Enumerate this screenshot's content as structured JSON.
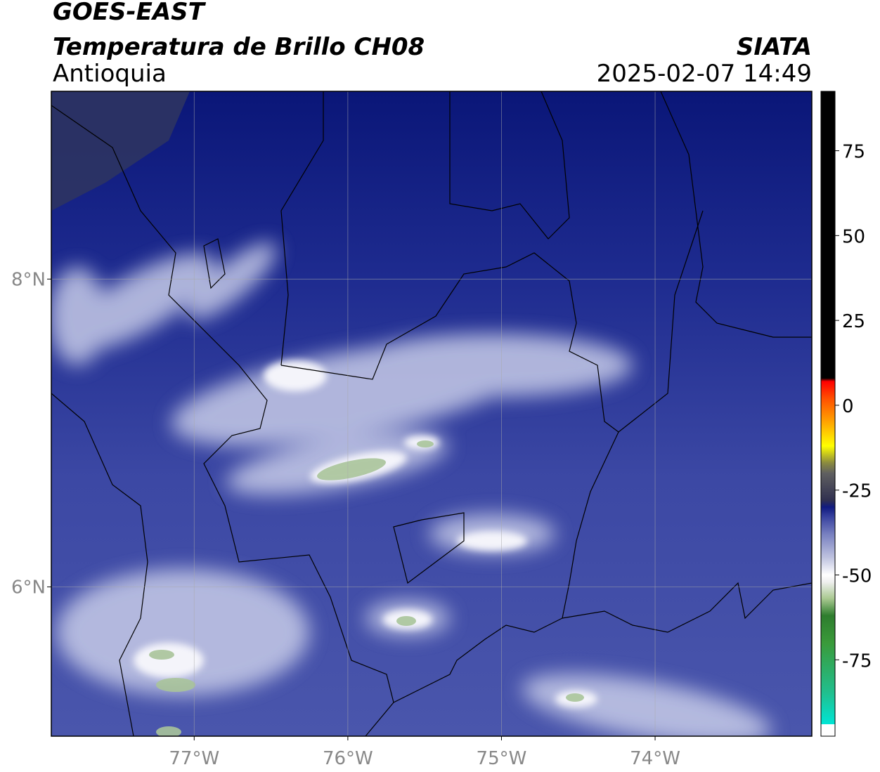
{
  "header": {
    "title": "GOES-EAST",
    "subtitle": "Temperatura de Brillo CH08",
    "region": "Antioquia",
    "source": "SIATA",
    "datetime": "2025-02-07 14:49"
  },
  "map": {
    "lonlim": [
      -77.93,
      -72.98
    ],
    "latlim": [
      5.03,
      9.22
    ],
    "lonticks": [
      {
        "value": -77,
        "label": "77°W"
      },
      {
        "value": -76,
        "label": "76°W"
      },
      {
        "value": -75,
        "label": "75°W"
      },
      {
        "value": -74,
        "label": "74°W"
      }
    ],
    "latticks": [
      {
        "value": 8,
        "label": "8°N"
      },
      {
        "value": 6,
        "label": "6°N"
      }
    ]
  },
  "colorbar": {
    "lim": [
      -97.5,
      92.5
    ],
    "ticks": [
      75,
      50,
      25,
      0,
      -25,
      -50,
      -75
    ],
    "stops": [
      {
        "value": -97.5,
        "color": "#ffffff"
      },
      {
        "value": -94,
        "color": "#ffffff"
      },
      {
        "value": -94,
        "color": "#00e5d5"
      },
      {
        "value": -85,
        "color": "#20c090"
      },
      {
        "value": -70,
        "color": "#3a9a3a"
      },
      {
        "value": -62,
        "color": "#2e7d2e"
      },
      {
        "value": -57,
        "color": "#a8c890"
      },
      {
        "value": -52,
        "color": "#f0f0f0"
      },
      {
        "value": -50,
        "color": "#ffffff"
      },
      {
        "value": -45,
        "color": "#c0c4e0"
      },
      {
        "value": -38,
        "color": "#7880c0"
      },
      {
        "value": -33,
        "color": "#3a44a0"
      },
      {
        "value": -30,
        "color": "#101a80"
      },
      {
        "value": -28,
        "color": "#303050"
      },
      {
        "value": -20,
        "color": "#606060"
      },
      {
        "value": -17,
        "color": "#8a8a40"
      },
      {
        "value": -12,
        "color": "#ffff00"
      },
      {
        "value": -5,
        "color": "#ffa500"
      },
      {
        "value": 2,
        "color": "#ff5000"
      },
      {
        "value": 7,
        "color": "#ff0000"
      },
      {
        "value": 8,
        "color": "#000000"
      },
      {
        "value": 92.5,
        "color": "#000000"
      }
    ]
  }
}
